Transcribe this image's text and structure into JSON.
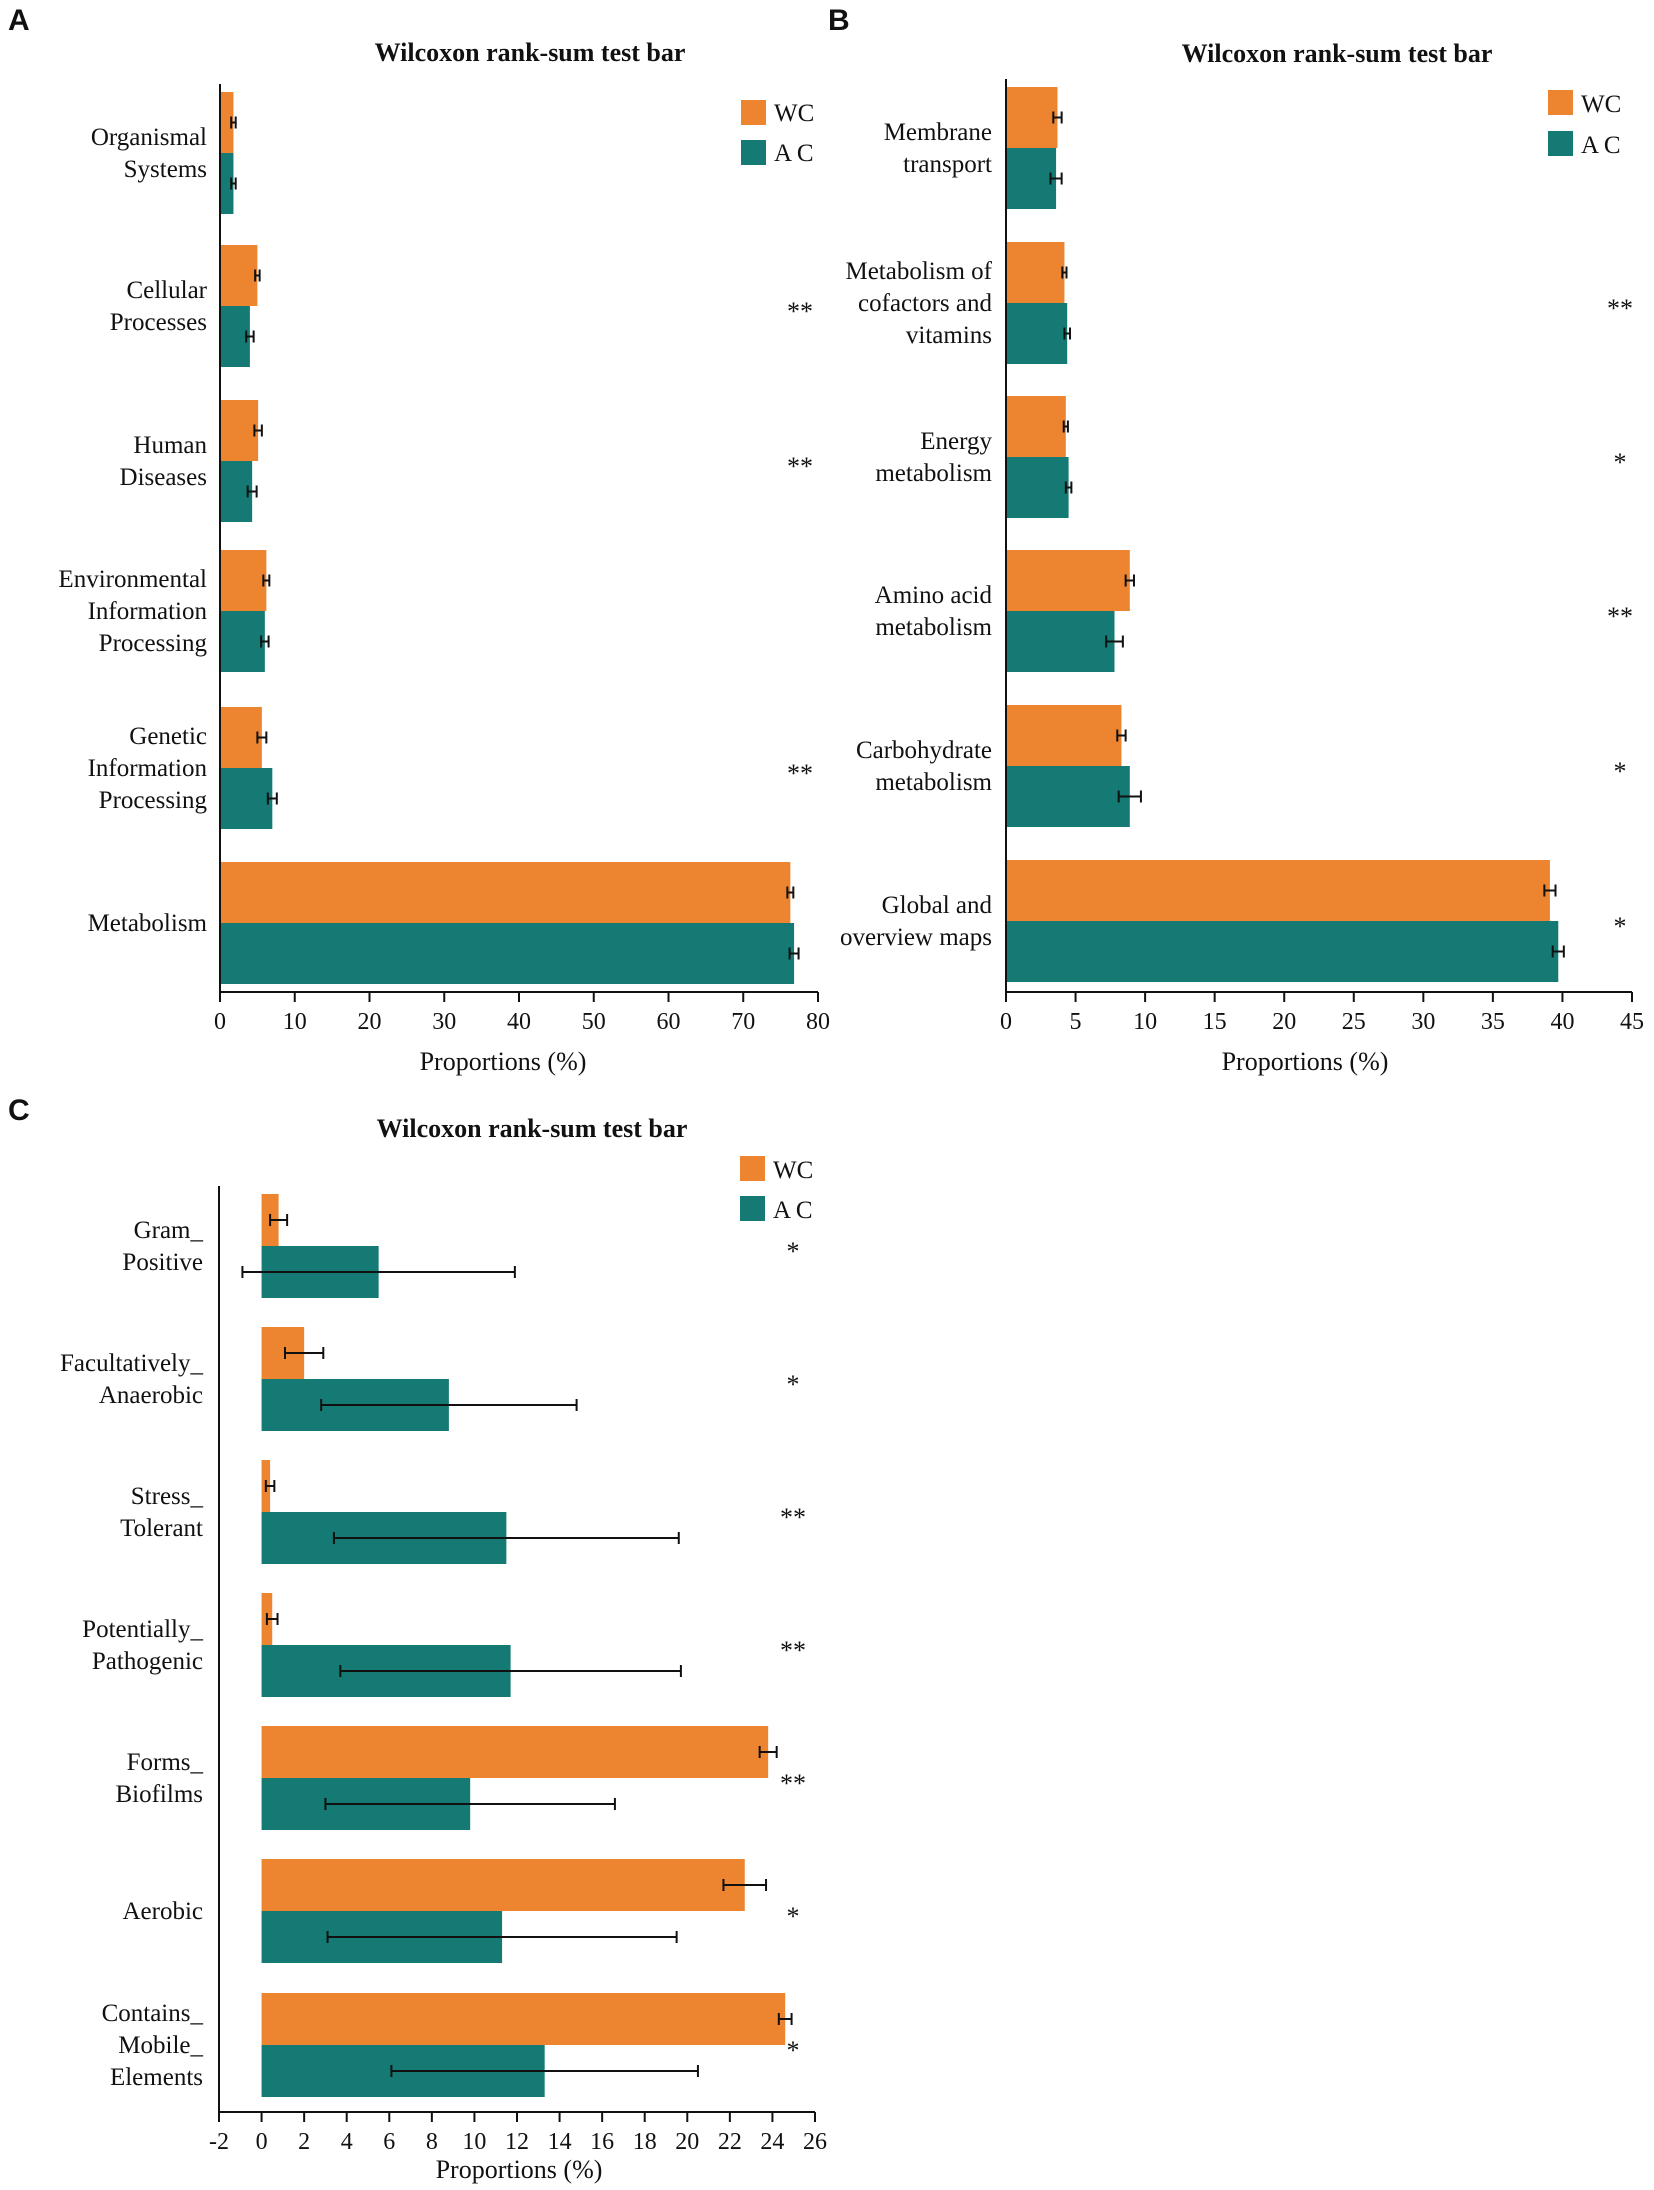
{
  "colors": {
    "WC": "#EC8430",
    "AC": "#147A73",
    "axis": "#111111"
  },
  "chart_data": [
    {
      "type": "bar",
      "orientation": "horizontal",
      "panel": "A",
      "title": "Wilcoxon rank-sum test bar",
      "xlabel": "Proportions (%)",
      "xlim": [
        0,
        80
      ],
      "xticks": [
        0,
        10,
        20,
        30,
        40,
        50,
        60,
        70,
        80
      ],
      "legend": {
        "position": "top-right",
        "labels": [
          "WC",
          "A C"
        ]
      },
      "categories": [
        [
          "Organismal",
          "Systems"
        ],
        [
          "Cellular",
          "Processes"
        ],
        [
          "Human",
          "Diseases"
        ],
        [
          "Environmental",
          "Information",
          "Processing"
        ],
        [
          "Genetic",
          "Information",
          "Processing"
        ],
        [
          "Metabolism"
        ]
      ],
      "series": [
        {
          "name": "WC",
          "values": [
            1.8,
            5.0,
            5.1,
            6.2,
            5.6,
            76.3
          ],
          "errors": [
            0.3,
            0.3,
            0.5,
            0.4,
            0.6,
            0.4
          ]
        },
        {
          "name": "A C",
          "values": [
            1.8,
            4.0,
            4.3,
            6.0,
            7.0,
            76.8
          ],
          "errors": [
            0.3,
            0.5,
            0.6,
            0.5,
            0.6,
            0.6
          ]
        }
      ],
      "significance": [
        "",
        "**",
        "**",
        "",
        "**",
        ""
      ]
    },
    {
      "type": "bar",
      "orientation": "horizontal",
      "panel": "B",
      "title": "Wilcoxon rank-sum test bar",
      "xlabel": "Proportions (%)",
      "xlim": [
        0,
        45
      ],
      "xticks": [
        0,
        5,
        10,
        15,
        20,
        25,
        30,
        35,
        40,
        45
      ],
      "legend": {
        "position": "top-right",
        "labels": [
          "WC",
          "A C"
        ]
      },
      "categories": [
        [
          "Membrane",
          "transport"
        ],
        [
          "Metabolism of",
          "cofactors and",
          "vitamins"
        ],
        [
          "Energy",
          "metabolism"
        ],
        [
          "Amino acid",
          "metabolism"
        ],
        [
          "Carbohydrate",
          "metabolism"
        ],
        [
          "Global and",
          "overview maps"
        ]
      ],
      "series": [
        {
          "name": "WC",
          "values": [
            3.7,
            4.2,
            4.3,
            8.9,
            8.3,
            39.1
          ],
          "errors": [
            0.3,
            0.15,
            0.15,
            0.3,
            0.3,
            0.4
          ]
        },
        {
          "name": "A C",
          "values": [
            3.6,
            4.4,
            4.5,
            7.8,
            8.9,
            39.7
          ],
          "errors": [
            0.4,
            0.2,
            0.2,
            0.6,
            0.8,
            0.4
          ]
        }
      ],
      "significance": [
        "",
        "**",
        "*",
        "**",
        "*",
        "*"
      ]
    },
    {
      "type": "bar",
      "orientation": "horizontal",
      "panel": "C",
      "title": "Wilcoxon rank-sum test bar",
      "xlabel": "Proportions (%)",
      "xlim": [
        -2,
        26
      ],
      "xticks": [
        -2,
        0,
        2,
        4,
        6,
        8,
        10,
        12,
        14,
        16,
        18,
        20,
        22,
        24,
        26
      ],
      "legend": {
        "position": "top-right",
        "labels": [
          "WC",
          "A C"
        ]
      },
      "categories": [
        [
          "Gram_",
          "Positive"
        ],
        [
          "Facultatively_",
          "Anaerobic"
        ],
        [
          "Stress_",
          "Tolerant"
        ],
        [
          "Potentially_",
          "Pathogenic"
        ],
        [
          "Forms_",
          "Biofilms"
        ],
        [
          "Aerobic"
        ],
        [
          "Contains_",
          "Mobile_",
          "Elements"
        ]
      ],
      "series": [
        {
          "name": "WC",
          "values": [
            0.8,
            2.0,
            0.4,
            0.5,
            23.8,
            22.7,
            24.6
          ],
          "errors": [
            0.4,
            0.9,
            0.2,
            0.25,
            0.4,
            1.0,
            0.3
          ]
        },
        {
          "name": "A C",
          "values": [
            5.5,
            8.8,
            11.5,
            11.7,
            9.8,
            11.3,
            13.3
          ],
          "errors": [
            6.4,
            6.0,
            8.1,
            8.0,
            6.8,
            8.2,
            7.2
          ]
        }
      ],
      "significance": [
        "*",
        "*",
        "**",
        "**",
        "**",
        "*",
        "*"
      ]
    }
  ]
}
